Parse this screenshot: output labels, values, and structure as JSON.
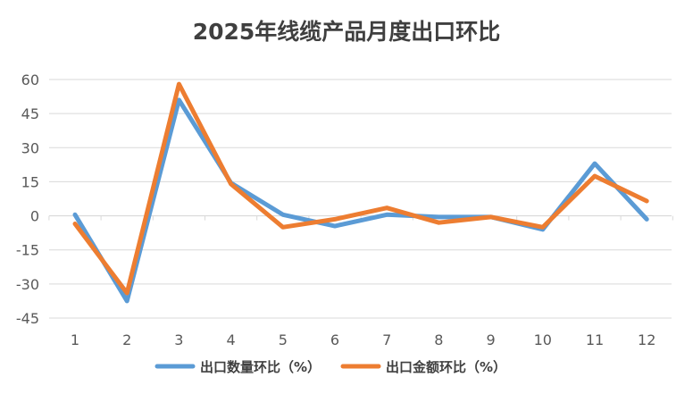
{
  "chart_data": {
    "type": "line",
    "title": "2025年线缆产品月度出口环比",
    "xlabel": "",
    "ylabel": "",
    "categories": [
      "1",
      "2",
      "3",
      "4",
      "5",
      "6",
      "7",
      "8",
      "9",
      "10",
      "11",
      "12"
    ],
    "ylim": [
      -45,
      60
    ],
    "yticks": [
      "60",
      "45",
      "30",
      "15",
      "0",
      "-15",
      "-30",
      "-45"
    ],
    "grid": true,
    "legend_position": "bottom",
    "series": [
      {
        "name": "出口数量环比（%）",
        "color": "#5b9bd5",
        "values": [
          0.5,
          -37.5,
          51,
          14.5,
          0.5,
          -4.5,
          0.5,
          -0.5,
          -0.5,
          -6,
          23,
          -1.5
        ]
      },
      {
        "name": "出口金额环比（%）",
        "color": "#ed7d31",
        "values": [
          -3.5,
          -34,
          58,
          14,
          -5,
          -1.5,
          3.5,
          -3,
          -0.5,
          -5,
          17.5,
          6.5
        ]
      }
    ]
  }
}
